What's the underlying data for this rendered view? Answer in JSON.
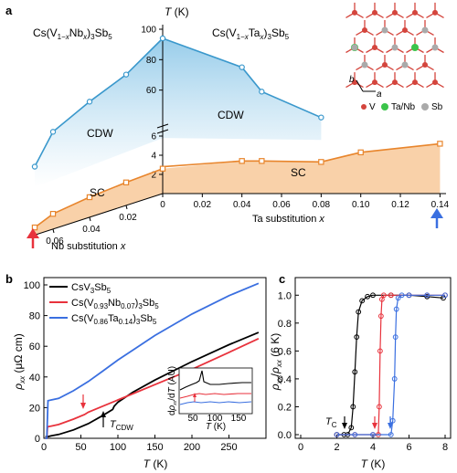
{
  "chart_data": [
    {
      "type": "scatter",
      "panel": "a",
      "ylabel": "T (K)",
      "xlabel_right": "Ta substitution x",
      "xlabel_left": "Nb substitution x",
      "formula_left": "Cs(V1−xNbx)3Sb5",
      "formula_right": "Cs(V1−xTax)3Sb5",
      "region_labels": [
        "CDW",
        "CDW",
        "SC",
        "SC"
      ],
      "ta_ticks": [
        "0",
        "0.02",
        "0.04",
        "0.06",
        "0.08",
        "0.10",
        "0.12",
        "0.14"
      ],
      "nb_ticks": [
        "0.02",
        "0.04",
        "0.06"
      ],
      "y_ticks_lower": [
        "2",
        "4",
        "6"
      ],
      "y_ticks_upper": [
        "60",
        "80",
        "100"
      ],
      "ta_marker": "0.14",
      "nb_marker": "0.07",
      "cdw_nb": {
        "x": [
          0,
          0.02,
          0.04,
          0.06,
          0.07
        ],
        "y": [
          94,
          78,
          68,
          56,
          37
        ]
      },
      "cdw_ta": {
        "x": [
          0,
          0.04,
          0.05,
          0.08
        ],
        "y": [
          94,
          75,
          59,
          42
        ]
      },
      "sc_nb": {
        "x": [
          0,
          0.02,
          0.04,
          0.06,
          0.07
        ],
        "y": [
          2.6,
          2.4,
          2.1,
          1.6,
          0.8
        ]
      },
      "sc_ta": {
        "x": [
          0,
          0.04,
          0.05,
          0.08,
          0.1,
          0.14
        ],
        "y": [
          2.8,
          3.4,
          3.4,
          3.3,
          4.3,
          5.2
        ]
      },
      "lattice_legend": [
        "V",
        "Ta/Nb",
        "Sb"
      ],
      "lattice_axes": [
        "a",
        "b"
      ],
      "colors": {
        "cdw_line": "#3a98cc",
        "sc_line": "#e8852c",
        "cdw_fill": "#bfe0f2",
        "sc_fill": "#f8c99a",
        "red_arrow": "#e8323c",
        "blue_arrow": "#3a6fe0"
      }
    },
    {
      "type": "line",
      "panel": "b",
      "xlabel": "T (K)",
      "ylabel": "ρxx (μΩ cm)",
      "xlim": [
        0,
        300
      ],
      "ylim": [
        0,
        100
      ],
      "x_ticks": [
        "0",
        "50",
        "100",
        "150",
        "200",
        "250"
      ],
      "y_ticks": [
        "0",
        "20",
        "40",
        "60",
        "80",
        "100"
      ],
      "legend": [
        "CsV3Sb5",
        "Cs(V0.93Nb0.07)3Sb5",
        "Cs(V0.86Ta0.14)3Sb5"
      ],
      "annotation": "TCDW",
      "series": [
        {
          "name": "CsV3Sb5",
          "color": "#000000",
          "x": [
            2,
            5,
            10,
            20,
            40,
            60,
            80,
            93,
            95,
            100,
            120,
            150,
            200,
            250,
            290
          ],
          "y": [
            1,
            1,
            1.6,
            2.5,
            5.5,
            9.5,
            15,
            18.8,
            21,
            23.5,
            30,
            38,
            50,
            61,
            69
          ]
        },
        {
          "name": "Cs(V0.93Nb0.07)3Sb5",
          "color": "#e8323c",
          "x": [
            2,
            4,
            5,
            10,
            20,
            40,
            55,
            60,
            80,
            100,
            150,
            200,
            250,
            290
          ],
          "y": [
            0,
            0,
            7.5,
            8,
            9,
            12.5,
            15.5,
            17,
            21,
            25,
            35,
            45,
            56,
            65
          ]
        },
        {
          "name": "Cs(V0.86Ta0.14)3Sb5",
          "color": "#3a6fe0",
          "x": [
            2,
            4,
            5.5,
            10,
            20,
            40,
            60,
            80,
            100,
            150,
            200,
            250,
            290
          ],
          "y": [
            0,
            0,
            24.5,
            25,
            26,
            31,
            37,
            44,
            51,
            67,
            81,
            93,
            101
          ]
        }
      ],
      "inset": {
        "ylabel": "dρxx/dT (AU)",
        "xlabel": "T (K)",
        "x_ticks": [
          "50",
          "100",
          "150"
        ]
      }
    },
    {
      "type": "line",
      "panel": "c",
      "xlabel": "T (K)",
      "ylabel": "ρxx/ρxx (6 K)",
      "xlim": [
        0,
        8
      ],
      "ylim": [
        0,
        1.1
      ],
      "x_ticks": [
        "0",
        "2",
        "4",
        "6",
        "8"
      ],
      "y_ticks": [
        "0.0",
        "0.2",
        "0.4",
        "0.6",
        "0.8",
        "1.0"
      ],
      "annotation": "TC",
      "series": [
        {
          "name": "CsV3Sb5",
          "color": "#000000",
          "x": [
            2,
            2.4,
            2.6,
            2.8,
            2.9,
            3.0,
            3.1,
            3.2,
            3.4,
            3.7,
            4,
            5,
            6,
            7,
            7.9
          ],
          "y": [
            0,
            0,
            0,
            0.05,
            0.2,
            0.45,
            0.7,
            0.88,
            0.96,
            0.99,
            1,
            1,
            1,
            0.99,
            0.98
          ]
        },
        {
          "name": "Cs(V0.93Nb0.07)3Sb5",
          "color": "#e8323c",
          "x": [
            2,
            3,
            4,
            4.3,
            4.35,
            4.4,
            4.45,
            4.5,
            4.6,
            5,
            6,
            7,
            8
          ],
          "y": [
            0,
            0,
            0,
            0,
            0.2,
            0.6,
            0.85,
            0.97,
            1,
            1,
            1,
            1,
            1
          ]
        },
        {
          "name": "Cs(V0.86Ta0.14)3Sb5",
          "color": "#3a6fe0",
          "x": [
            2,
            3,
            4,
            5,
            5.1,
            5.2,
            5.25,
            5.3,
            5.4,
            5.6,
            6,
            7,
            8
          ],
          "y": [
            0,
            0,
            0,
            0,
            0.1,
            0.4,
            0.7,
            0.9,
            0.98,
            1,
            1,
            1,
            1
          ]
        }
      ]
    }
  ]
}
